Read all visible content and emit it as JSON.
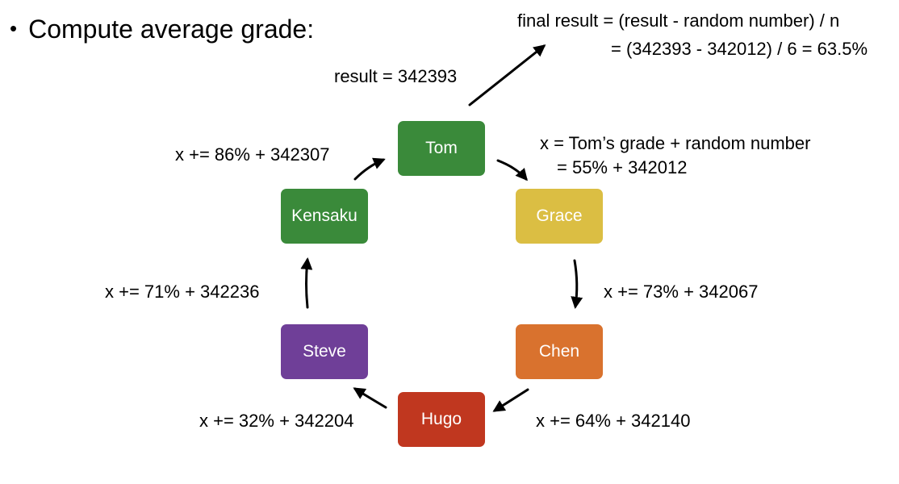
{
  "heading": "Compute average grade:",
  "final_result": {
    "line1": "final result = (result - random number) / n",
    "line2": "= (342393 - 342012) / 6 = 63.5%"
  },
  "result_label": "result = 342393",
  "nodes": {
    "tom": {
      "label": "Tom",
      "color": "#3a8a3a"
    },
    "grace": {
      "label": "Grace",
      "color": "#dbbe43"
    },
    "chen": {
      "label": "Chen",
      "color": "#d9722e"
    },
    "hugo": {
      "label": "Hugo",
      "color": "#c0371f"
    },
    "steve": {
      "label": "Steve",
      "color": "#6f3f98"
    },
    "kensaku": {
      "label": "Kensaku",
      "color": "#3a8a3a"
    }
  },
  "edges": {
    "tom_grace_line1": "x = Tom’s grade + random number",
    "tom_grace_line2": "= 55% + 342012",
    "grace_chen": "x += 73% + 342067",
    "chen_hugo": "x += 64% + 342140",
    "hugo_steve": "x += 32% + 342204",
    "steve_kensaku": "x += 71% + 342236",
    "kensaku_tom": "x += 86% + 342307"
  }
}
